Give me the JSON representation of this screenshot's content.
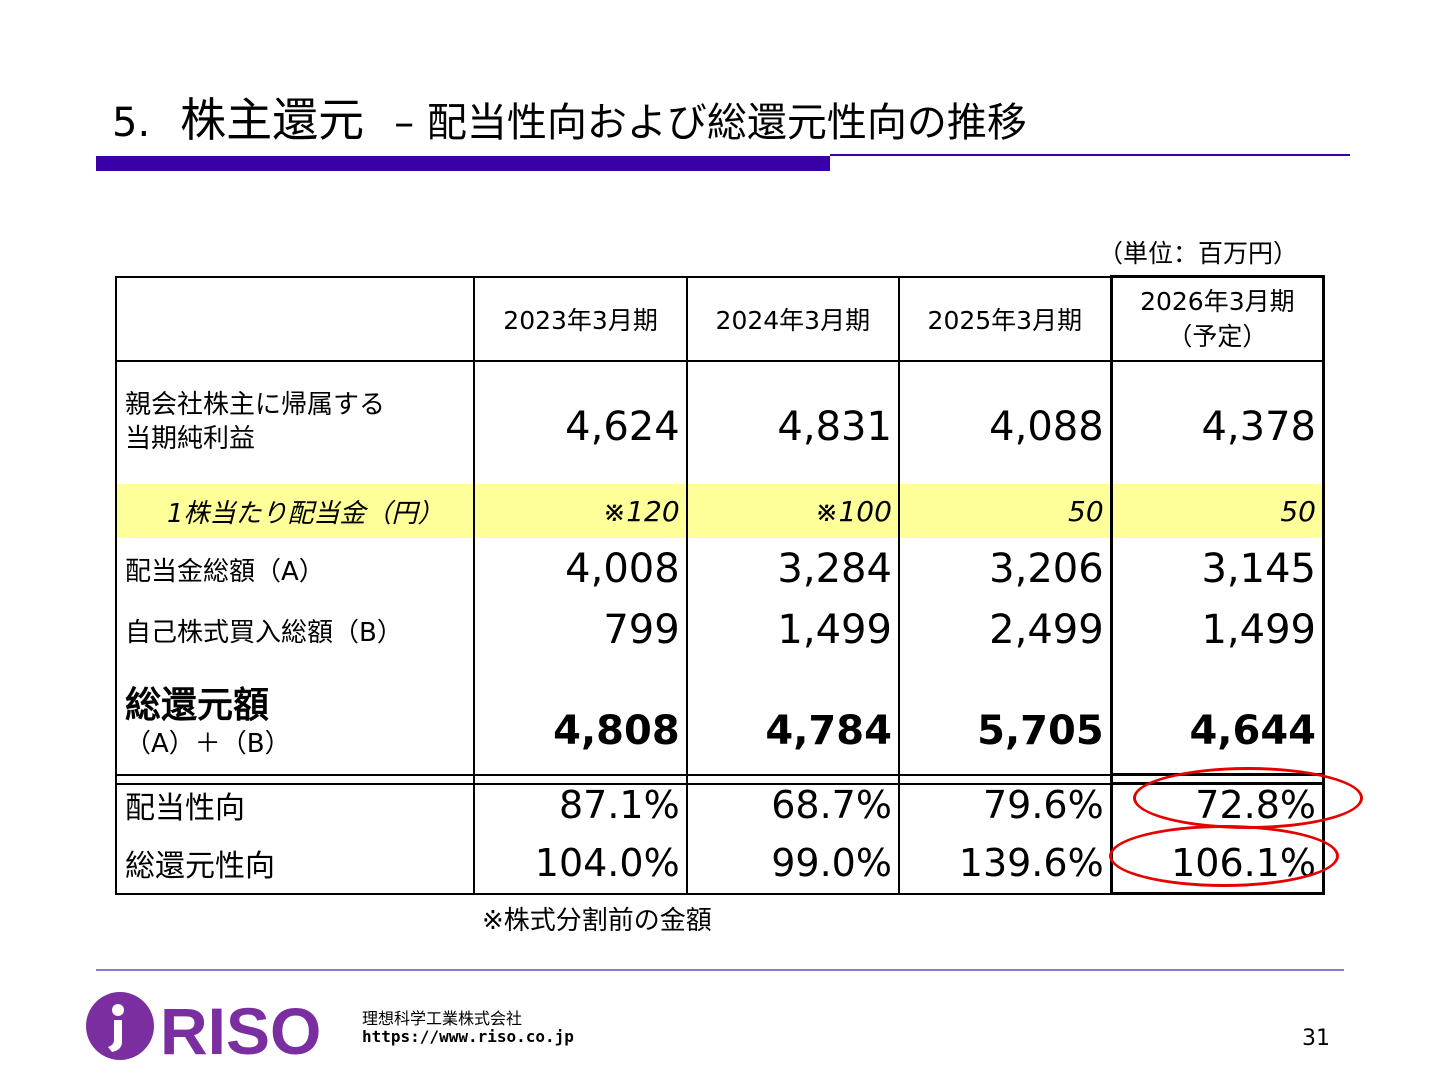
{
  "title": {
    "number": "5.",
    "main": "株主還元",
    "sub": "– 配当性向および総還元性向の推移"
  },
  "unit": "（単位：百万円）",
  "columns": [
    "2023年3月期",
    "2024年3月期",
    "2025年3月期",
    "2026年3月期",
    "（予定）"
  ],
  "rows": {
    "profit": {
      "label_line1": "親会社株主に帰属する",
      "label_line2": "当期純利益",
      "values": [
        "4,624",
        "4,831",
        "4,088",
        "4,378"
      ]
    },
    "dividend_per_share": {
      "label": "1株当たり配当金（円）",
      "values": [
        "※120",
        "※100",
        "50",
        "50"
      ]
    },
    "total_dividend": {
      "label": "配当金総額（A）",
      "values": [
        "4,008",
        "3,284",
        "3,206",
        "3,145"
      ]
    },
    "buyback": {
      "label": "自己株式買入総額（B）",
      "values": [
        "799",
        "1,499",
        "2,499",
        "1,499"
      ]
    },
    "total_return": {
      "label_main": "総還元額",
      "label_sub": "（A）＋（B）",
      "values": [
        "4,808",
        "4,784",
        "5,705",
        "4,644"
      ]
    },
    "payout_ratio": {
      "label": "配当性向",
      "values": [
        "87.1%",
        "68.7%",
        "79.6%",
        "72.8%"
      ]
    },
    "total_return_ratio": {
      "label": "総還元性向",
      "values": [
        "104.0%",
        "99.0%",
        "139.6%",
        "106.1%"
      ]
    }
  },
  "note": "※株式分割前の金額",
  "footer": {
    "logo_text": "RISO",
    "company": "理想科学工業株式会社",
    "url": "https://www.riso.co.jp",
    "page": "31"
  },
  "colors": {
    "accent": "#3a00a8",
    "highlight_row": "#ffff99",
    "circle": "#e60000"
  }
}
